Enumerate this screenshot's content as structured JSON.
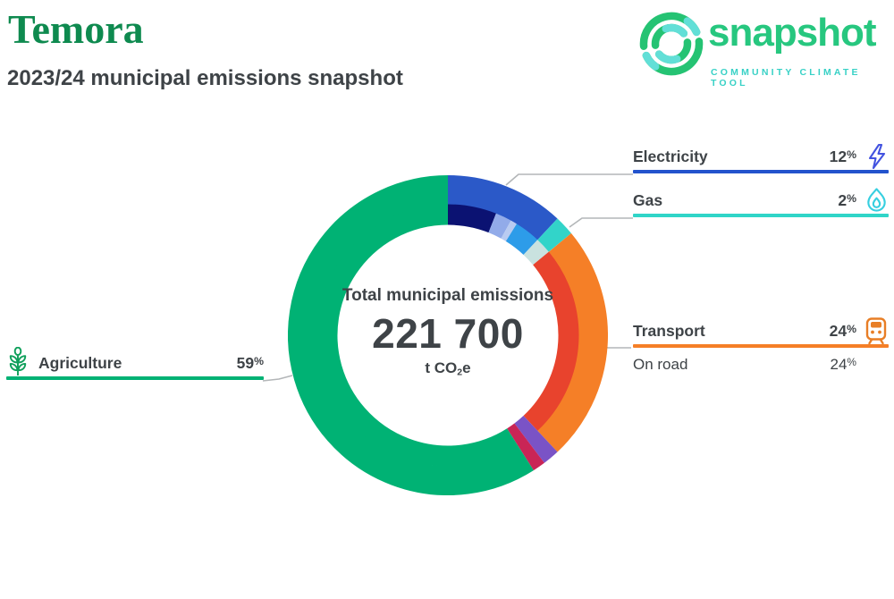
{
  "header": {
    "title": "Temora",
    "subtitle": "2023/24 municipal emissions snapshot"
  },
  "logo": {
    "wordmark": "snapshot",
    "tagline": "COMMUNITY CLIMATE TOOL",
    "green": "#27C77F",
    "teal": "#38D1C6"
  },
  "chart_data": {
    "type": "pie",
    "subtype": "donut-with-subsector-ring",
    "title": "Total municipal emissions",
    "center_label": "Total municipal emissions",
    "total_value": "221 700",
    "unit": {
      "prefix": "t CO",
      "sub": "2",
      "suffix": "e"
    },
    "start_angle_deg": 0,
    "direction": "clockwise",
    "percent_sign": "%",
    "segments": [
      {
        "label": "Electricity",
        "pct": 12,
        "color": "#2B59C8",
        "sub": [
          {
            "pct": 6.0,
            "color": "#0B1272"
          },
          {
            "pct": 2.0,
            "color": "#92ABE9"
          },
          {
            "pct": 0.8,
            "color": "#B9CBF1"
          },
          {
            "pct": 3.2,
            "color": "#2D9CE9"
          }
        ]
      },
      {
        "label": "Gas",
        "pct": 2,
        "color": "#32D4C9",
        "sub": [
          {
            "pct": 2,
            "color": "#C9E2DF"
          }
        ]
      },
      {
        "label": "Transport",
        "pct": 24,
        "color": "#F57F27",
        "sub": [
          {
            "pct": 24,
            "color": "#E8432D"
          }
        ]
      },
      {
        "label": "",
        "pct": 1.7,
        "color": "#7A53C6",
        "sub": [
          {
            "pct": 1.7,
            "color": "#7A53C6"
          }
        ]
      },
      {
        "label": "",
        "pct": 1.3,
        "color": "#C92556",
        "sub": [
          {
            "pct": 1.3,
            "color": "#C92556"
          }
        ]
      },
      {
        "label": "Agriculture",
        "pct": 59,
        "color": "#00B274",
        "sub": [
          {
            "pct": 59,
            "color": "#00B274"
          }
        ]
      }
    ],
    "callouts": [
      {
        "title": "Electricity",
        "pct": "12",
        "line_color": "#2353CD",
        "icon": "lightning-bolt",
        "side": "right"
      },
      {
        "title": "Gas",
        "pct": "2",
        "line_color": "#30D5C8",
        "icon": "flame",
        "side": "right"
      },
      {
        "title": "Transport",
        "pct": "24",
        "line_color": "#F57F27",
        "icon": "train",
        "side": "right",
        "sub_row": {
          "title": "On road",
          "pct": "24"
        }
      },
      {
        "title": "Agriculture",
        "pct": "59",
        "line_color": "#00B274",
        "icon": "wheat",
        "side": "left"
      }
    ]
  }
}
